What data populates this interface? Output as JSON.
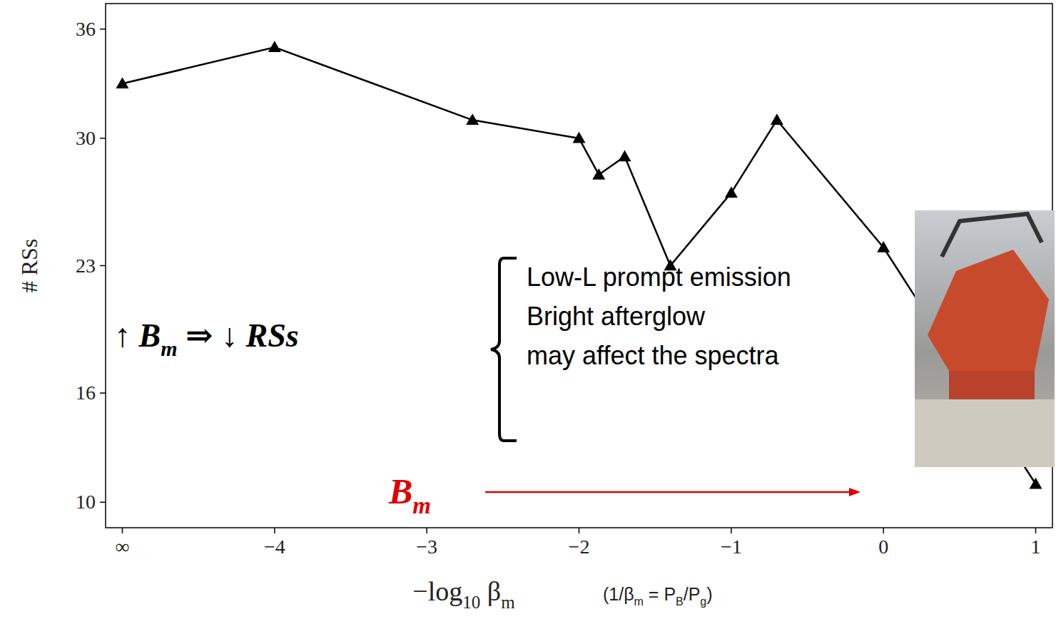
{
  "chart_data": {
    "type": "line",
    "x_label": [
      "−log",
      "10",
      " β",
      "m"
    ],
    "x_label_note": [
      "(1/β",
      "m",
      " = P",
      "B",
      "/P",
      "g",
      ")"
    ],
    "y_label": "# RSs",
    "x": [
      -5,
      -4,
      -2.7,
      -2,
      -1.87,
      -1.7,
      -1.4,
      -1,
      -0.7,
      0,
      1
    ],
    "values": [
      33,
      35,
      31,
      30,
      28,
      29,
      23,
      27,
      31,
      24,
      11
    ],
    "color": "#000000",
    "marker": "triangle",
    "line_style": "solid",
    "xlim": [
      -5.11,
      1.11
    ],
    "xticks": [
      {
        "value": -5,
        "label": "∞"
      },
      {
        "value": -4,
        "label": "−4"
      },
      {
        "value": -3,
        "label": "−3"
      },
      {
        "value": -2,
        "label": "−2"
      },
      {
        "value": -1,
        "label": "−1"
      },
      0,
      1
    ],
    "ylim": [
      8.6,
      37.4
    ],
    "yticks": [
      10,
      16,
      23,
      30,
      36
    ],
    "grid": false,
    "annotations": {
      "claim": [
        "↑ B",
        "m",
        " ⇒ ↓ RSs"
      ],
      "effects": [
        "Low-L prompt emission",
        "Bright afterglow",
        "may affect the spectra"
      ],
      "arrow_label": [
        "B",
        "m"
      ]
    }
  }
}
